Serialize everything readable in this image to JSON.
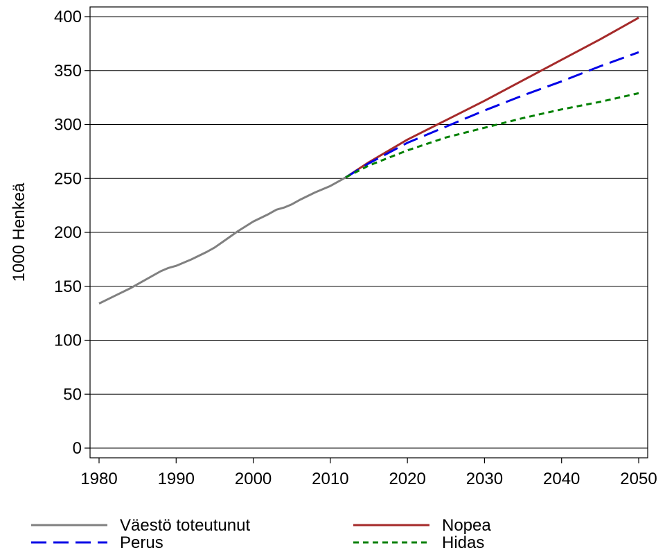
{
  "chart_data": {
    "type": "line",
    "title": "",
    "xlabel": "",
    "ylabel": "1000 Henkeä",
    "xlim": [
      1980,
      2050
    ],
    "ylim": [
      0,
      400
    ],
    "x_ticks": [
      1980,
      1990,
      2000,
      2010,
      2020,
      2030,
      2040,
      2050
    ],
    "y_ticks": [
      0,
      50,
      100,
      150,
      200,
      250,
      300,
      350,
      400
    ],
    "grid": "horizontal",
    "legend_position": "bottom",
    "series": [
      {
        "name": "Väestö toteutunut",
        "color": "#808080",
        "style": "solid",
        "x": [
          1980,
          1982,
          1984,
          1986,
          1988,
          1989,
          1990,
          1992,
          1994,
          1995,
          1996,
          1998,
          2000,
          2002,
          2003,
          2004,
          2005,
          2006,
          2008,
          2010,
          2011,
          2012
        ],
        "y": [
          134,
          141,
          148,
          156,
          164,
          167,
          169,
          175,
          182,
          186,
          191,
          201,
          210,
          217,
          221,
          223,
          226,
          230,
          237,
          243,
          247,
          251
        ]
      },
      {
        "name": "Nopea",
        "color": "#a52a2a",
        "style": "solid",
        "x": [
          2012,
          2015,
          2020,
          2025,
          2030,
          2035,
          2040,
          2045,
          2050
        ],
        "y": [
          251,
          265,
          286,
          304,
          322,
          341,
          360,
          379,
          399
        ]
      },
      {
        "name": "Perus",
        "color": "#0000e6",
        "style": "long-dash",
        "x": [
          2012,
          2015,
          2020,
          2025,
          2030,
          2035,
          2040,
          2045,
          2050
        ],
        "y": [
          251,
          264,
          283,
          298,
          313,
          327,
          340,
          354,
          367
        ]
      },
      {
        "name": "Hidas",
        "color": "#008000",
        "style": "short-dash",
        "x": [
          2012,
          2015,
          2020,
          2025,
          2030,
          2035,
          2040,
          2045,
          2050
        ],
        "y": [
          251,
          262,
          276,
          288,
          297,
          306,
          314,
          321,
          329
        ]
      }
    ],
    "legend": [
      {
        "label": "Väestö toteutunut",
        "color": "#808080",
        "style": "solid",
        "row": 0,
        "col": 0
      },
      {
        "label": "Nopea",
        "color": "#a52a2a",
        "style": "solid",
        "row": 0,
        "col": 1
      },
      {
        "label": "Perus",
        "color": "#0000e6",
        "style": "long-dash",
        "row": 1,
        "col": 0
      },
      {
        "label": "Hidas",
        "color": "#008000",
        "style": "short-dash",
        "row": 1,
        "col": 1
      }
    ]
  }
}
